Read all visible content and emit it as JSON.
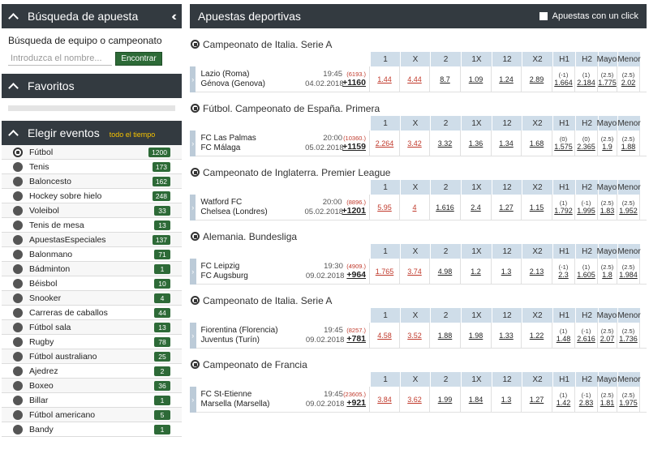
{
  "sidebar": {
    "search": {
      "title": "Búsqueda de apuesta",
      "label": "Búsqueda de equipo o campeonato",
      "placeholder": "Introduzca el nombre...",
      "button": "Encontrar"
    },
    "favorites": {
      "title": "Favoritos"
    },
    "events": {
      "title": "Elegir eventos",
      "filter": "todo el tiempo",
      "items": [
        {
          "name": "Fútbol",
          "count": "1200"
        },
        {
          "name": "Tenis",
          "count": "173"
        },
        {
          "name": "Baloncesto",
          "count": "162"
        },
        {
          "name": "Hockey sobre hielo",
          "count": "248"
        },
        {
          "name": "Voleibol",
          "count": "33"
        },
        {
          "name": "Tenis de mesa",
          "count": "13"
        },
        {
          "name": "ApuestasEspeciales",
          "count": "137"
        },
        {
          "name": "Balonmano",
          "count": "71"
        },
        {
          "name": "Bádminton",
          "count": "1"
        },
        {
          "name": "Béisbol",
          "count": "10"
        },
        {
          "name": "Snooker",
          "count": "4"
        },
        {
          "name": "Carreras de caballos",
          "count": "44"
        },
        {
          "name": "Fútbol sala",
          "count": "13"
        },
        {
          "name": "Rugby",
          "count": "78"
        },
        {
          "name": "Fútbol australiano",
          "count": "25"
        },
        {
          "name": "Ajedrez",
          "count": "2"
        },
        {
          "name": "Boxeo",
          "count": "36"
        },
        {
          "name": "Billar",
          "count": "1"
        },
        {
          "name": "Fútbol americano",
          "count": "5"
        },
        {
          "name": "Bandy",
          "count": "1"
        }
      ]
    }
  },
  "main": {
    "title": "Apuestas deportivas",
    "one_click": "Apuestas con un click",
    "columns": [
      "1",
      "X",
      "2",
      "1X",
      "12",
      "X2",
      "H1",
      "H2",
      "Mayor",
      "Menor"
    ],
    "blocks": [
      {
        "title": "Campeonato de Italia. Serie A",
        "home": "Lazio (Roma)",
        "away": "Génova (Genova)",
        "time": "19:45",
        "date": "04.02.2018",
        "total_small": "(6193.)",
        "total": "+1160",
        "odds": [
          "1.44",
          "4.44",
          "8.7",
          "1.09",
          "1.24",
          "2.89"
        ],
        "h1": [
          "(-1)",
          "1.664"
        ],
        "h2": [
          "(1)",
          "2.184"
        ],
        "mayor": [
          "(2.5)",
          "1.775"
        ],
        "menor": [
          "(2.5)",
          "2.02"
        ]
      },
      {
        "title": "Fútbol. Campeonato de España. Primera",
        "home": "FC Las Palmas",
        "away": "FC Málaga",
        "time": "20:00",
        "date": "05.02.2018",
        "total_small": "(10360.)",
        "total": "+1159",
        "odds": [
          "2.264",
          "3.42",
          "3.32",
          "1.36",
          "1.34",
          "1.68"
        ],
        "h1": [
          "(0)",
          "1.575"
        ],
        "h2": [
          "(0)",
          "2.365"
        ],
        "mayor": [
          "(2.5)",
          "1.9"
        ],
        "menor": [
          "(2.5)",
          "1.88"
        ]
      },
      {
        "title": "Campeonato de Inglaterra. Premier League",
        "home": "Watford FC",
        "away": "Chelsea (Londres)",
        "time": "20:00",
        "date": "05.02.2018",
        "total_small": "(8896.)",
        "total": "+1201",
        "odds": [
          "5.95",
          "4",
          "1.616",
          "2.4",
          "1.27",
          "1.15"
        ],
        "h1": [
          "(1)",
          "1.792"
        ],
        "h2": [
          "(-1)",
          "1.995"
        ],
        "mayor": [
          "(2.5)",
          "1.83"
        ],
        "menor": [
          "(2.5)",
          "1.952"
        ]
      },
      {
        "title": "Alemania. Bundesliga",
        "home": "FC Leipzig",
        "away": "FC Augsburg",
        "time": "19:30",
        "date": "09.02.2018",
        "total_small": "(4909.)",
        "total": "+964",
        "odds": [
          "1.765",
          "3.74",
          "4.98",
          "1.2",
          "1.3",
          "2.13"
        ],
        "h1": [
          "(-1)",
          "2.3"
        ],
        "h2": [
          "(1)",
          "1.605"
        ],
        "mayor": [
          "(2.5)",
          "1.8"
        ],
        "menor": [
          "(2.5)",
          "1.984"
        ]
      },
      {
        "title": "Campeonato de Italia. Serie A",
        "home": "Fiorentina (Florencia)",
        "away": "Juventus (Turín)",
        "time": "19:45",
        "date": "09.02.2018",
        "total_small": "(8257.)",
        "total": "+781",
        "odds": [
          "4.58",
          "3.52",
          "1.88",
          "1.98",
          "1.33",
          "1.22"
        ],
        "h1": [
          "(1)",
          "1.48"
        ],
        "h2": [
          "(-1)",
          "2.616"
        ],
        "mayor": [
          "(2.5)",
          "2.07"
        ],
        "menor": [
          "(2.5)",
          "1.736"
        ]
      },
      {
        "title": "Campeonato de Francia",
        "home": "FC St-Etienne",
        "away": "Marsella (Marsella)",
        "time": "19:45",
        "date": "09.02.2018",
        "total_small": "(23605.)",
        "total": "+921",
        "odds": [
          "3.84",
          "3.62",
          "1.99",
          "1.84",
          "1.3",
          "1.27"
        ],
        "h1": [
          "(1)",
          "1.42"
        ],
        "h2": [
          "(-1)",
          "2.83"
        ],
        "mayor": [
          "(2.5)",
          "1.81"
        ],
        "menor": [
          "(2.5)",
          "1.975"
        ]
      }
    ]
  }
}
